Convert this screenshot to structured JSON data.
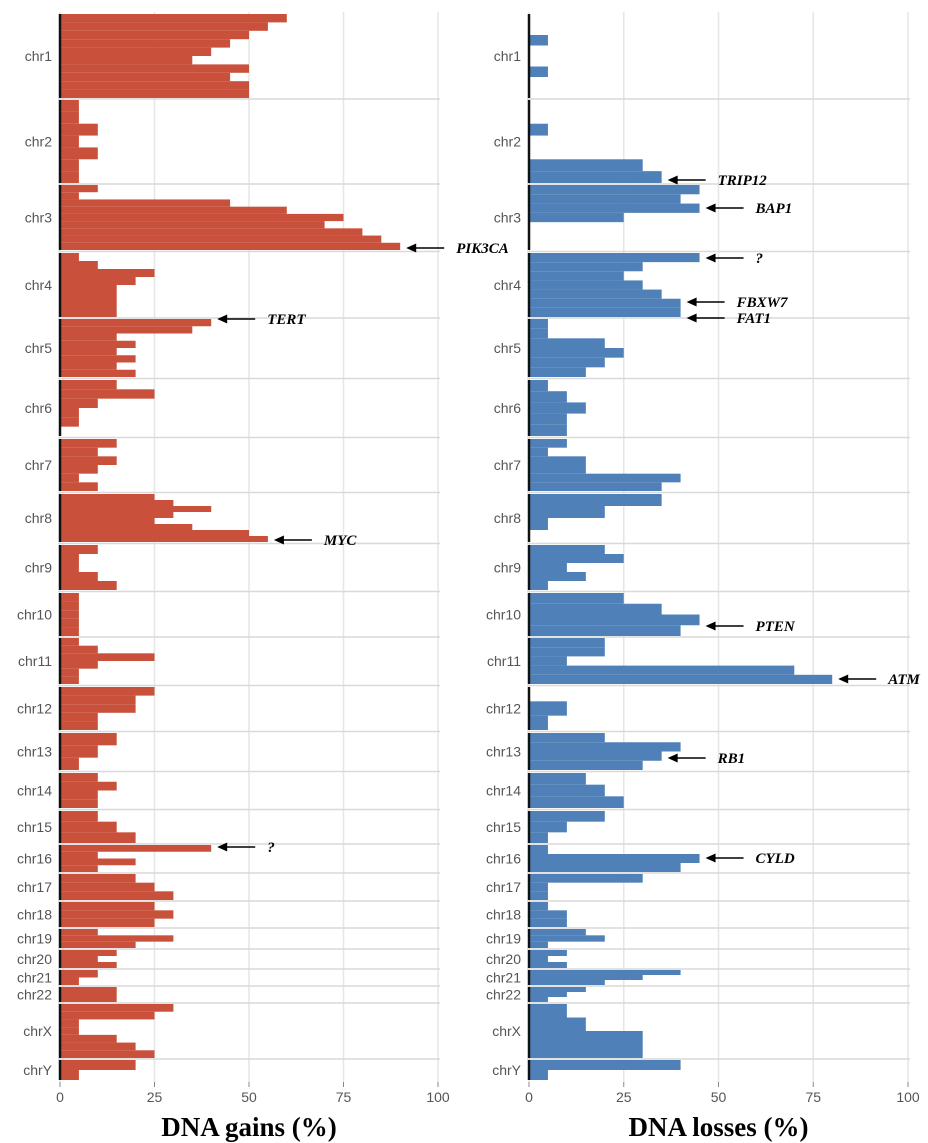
{
  "colors": {
    "gains": "#c9503a",
    "losses": "#4f81b8",
    "grid": "#e6e6e6",
    "axis": "#111111",
    "sep": "#d9d9d9"
  },
  "chart_data": [
    {
      "type": "bar",
      "orientation": "horizontal",
      "xlabel": "DNA gains (%)",
      "xlim": [
        0,
        100
      ],
      "xticks": [
        "0",
        "25",
        "50",
        "75",
        "100"
      ],
      "grid": true,
      "chromosomes": [
        {
          "name": "chr1",
          "values": [
            60,
            55,
            50,
            45,
            40,
            35,
            50,
            45,
            50,
            50
          ]
        },
        {
          "name": "chr2",
          "values": [
            5,
            5,
            10,
            5,
            10,
            5,
            5
          ]
        },
        {
          "name": "chr3",
          "values": [
            10,
            5,
            45,
            60,
            75,
            70,
            80,
            85,
            90
          ]
        },
        {
          "name": "chr4",
          "values": [
            5,
            10,
            25,
            20,
            15,
            15,
            15,
            15
          ]
        },
        {
          "name": "chr5",
          "values": [
            40,
            35,
            15,
            20,
            15,
            20,
            15,
            20
          ]
        },
        {
          "name": "chr6",
          "values": [
            15,
            25,
            10,
            5,
            5,
            0
          ]
        },
        {
          "name": "chr7",
          "values": [
            15,
            10,
            15,
            10,
            5,
            10
          ]
        },
        {
          "name": "chr8",
          "values": [
            25,
            30,
            40,
            30,
            25,
            35,
            50,
            55
          ]
        },
        {
          "name": "chr9",
          "values": [
            10,
            5,
            5,
            10,
            15
          ]
        },
        {
          "name": "chr10",
          "values": [
            5,
            5,
            5,
            5,
            5
          ]
        },
        {
          "name": "chr11",
          "values": [
            5,
            10,
            25,
            10,
            5,
            5
          ]
        },
        {
          "name": "chr12",
          "values": [
            25,
            20,
            20,
            10,
            10
          ]
        },
        {
          "name": "chr13",
          "values": [
            15,
            10,
            5
          ]
        },
        {
          "name": "chr14",
          "values": [
            10,
            15,
            10,
            10
          ]
        },
        {
          "name": "chr15",
          "values": [
            10,
            15,
            20
          ]
        },
        {
          "name": "chr16",
          "values": [
            40,
            10,
            20,
            10
          ]
        },
        {
          "name": "chr17",
          "values": [
            20,
            25,
            30
          ]
        },
        {
          "name": "chr18",
          "values": [
            25,
            30,
            25
          ]
        },
        {
          "name": "chr19",
          "values": [
            10,
            30,
            20
          ]
        },
        {
          "name": "chr20",
          "values": [
            15,
            10,
            15
          ]
        },
        {
          "name": "chr21",
          "values": [
            10,
            5
          ]
        },
        {
          "name": "chr22",
          "values": [
            15,
            15
          ]
        },
        {
          "name": "chrX",
          "values": [
            30,
            25,
            5,
            5,
            15,
            20,
            25
          ]
        },
        {
          "name": "chrY",
          "values": [
            20,
            5
          ]
        }
      ],
      "annotations": [
        {
          "label": "PIK3CA",
          "chromosome": "chr3",
          "value": 90
        },
        {
          "label": "TERT",
          "chromosome": "chr5",
          "value": 40
        },
        {
          "label": "MYC",
          "chromosome": "chr8",
          "value": 55
        },
        {
          "label": "?",
          "chromosome": "chr16",
          "value": 40
        }
      ]
    },
    {
      "type": "bar",
      "orientation": "horizontal",
      "xlabel": "DNA losses (%)",
      "xlim": [
        0,
        100
      ],
      "xticks": [
        "0",
        "25",
        "50",
        "75",
        "100"
      ],
      "grid": true,
      "chromosomes": [
        {
          "name": "chr1",
          "values": [
            0,
            0,
            5,
            0,
            0,
            5,
            0,
            0
          ]
        },
        {
          "name": "chr2",
          "values": [
            0,
            0,
            5,
            0,
            0,
            30,
            35
          ]
        },
        {
          "name": "chr3",
          "values": [
            45,
            40,
            45,
            25,
            0,
            0,
            0
          ]
        },
        {
          "name": "chr4",
          "values": [
            45,
            30,
            25,
            30,
            35,
            40,
            40
          ]
        },
        {
          "name": "chr5",
          "values": [
            5,
            5,
            20,
            25,
            20,
            15
          ]
        },
        {
          "name": "chr6",
          "values": [
            5,
            10,
            15,
            10,
            10
          ]
        },
        {
          "name": "chr7",
          "values": [
            10,
            5,
            15,
            15,
            40,
            35
          ]
        },
        {
          "name": "chr8",
          "values": [
            35,
            20,
            5,
            0
          ]
        },
        {
          "name": "chr9",
          "values": [
            20,
            25,
            10,
            15,
            5
          ]
        },
        {
          "name": "chr10",
          "values": [
            25,
            35,
            45,
            40
          ]
        },
        {
          "name": "chr11",
          "values": [
            20,
            20,
            10,
            70,
            80
          ]
        },
        {
          "name": "chr12",
          "values": [
            0,
            10,
            5
          ]
        },
        {
          "name": "chr13",
          "values": [
            20,
            40,
            35,
            30
          ]
        },
        {
          "name": "chr14",
          "values": [
            15,
            20,
            25
          ]
        },
        {
          "name": "chr15",
          "values": [
            20,
            10,
            5
          ]
        },
        {
          "name": "chr16",
          "values": [
            5,
            45,
            40
          ]
        },
        {
          "name": "chr17",
          "values": [
            30,
            5,
            5
          ]
        },
        {
          "name": "chr18",
          "values": [
            5,
            10,
            10
          ]
        },
        {
          "name": "chr19",
          "values": [
            15,
            20,
            5
          ]
        },
        {
          "name": "chr20",
          "values": [
            10,
            5,
            10
          ]
        },
        {
          "name": "chr21",
          "values": [
            40,
            30,
            20
          ]
        },
        {
          "name": "chr22",
          "values": [
            15,
            10,
            5
          ]
        },
        {
          "name": "chrX",
          "values": [
            10,
            15,
            30,
            30
          ]
        },
        {
          "name": "chrY",
          "values": [
            40,
            5
          ]
        }
      ],
      "annotations": [
        {
          "label": "TRIP12",
          "chromosome": "chr2",
          "value": 35
        },
        {
          "label": "BAP1",
          "chromosome": "chr3",
          "value": 45
        },
        {
          "label": "?",
          "chromosome": "chr4",
          "value": 45
        },
        {
          "label": "FBXW7",
          "chromosome": "chr4",
          "value": 40
        },
        {
          "label": "FAT1",
          "chromosome": "chr4",
          "value": 40
        },
        {
          "label": "PTEN",
          "chromosome": "chr10",
          "value": 45
        },
        {
          "label": "ATM",
          "chromosome": "chr11",
          "value": 80
        },
        {
          "label": "RB1",
          "chromosome": "chr13",
          "value": 35
        },
        {
          "label": "CYLD",
          "chromosome": "chr16",
          "value": 45
        }
      ]
    }
  ]
}
